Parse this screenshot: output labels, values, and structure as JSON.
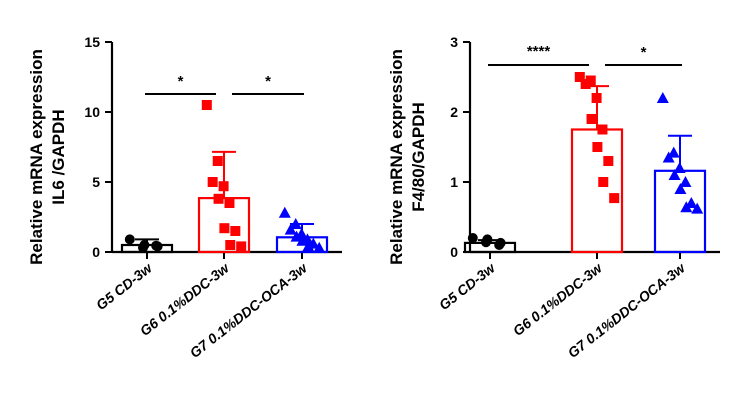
{
  "chart_data": [
    {
      "type": "bar",
      "ylabel_line1": "Relative mRNA expression",
      "ylabel_line2": "IL6 /GAPDH",
      "ylim": [
        0,
        15
      ],
      "yticks": [
        0,
        5,
        10,
        15
      ],
      "categories": [
        "G5 CD-3w",
        "G6 0.1%DDC-3w",
        "G7 0.1%DDC-OCA-3w"
      ],
      "colors": [
        "#000000",
        "#ff0000",
        "#0000ff"
      ],
      "markers": [
        "circle",
        "square",
        "triangle"
      ],
      "means": [
        0.5,
        3.85,
        1.05
      ],
      "sd": [
        0.4,
        3.3,
        0.95
      ],
      "points": [
        [
          0.9,
          0.5,
          0.3,
          0.4,
          0.45
        ],
        [
          10.5,
          6.5,
          5.0,
          4.7,
          3.8,
          3.5,
          1.7,
          1.5,
          0.5,
          0.4
        ],
        [
          2.8,
          2.0,
          1.6,
          1.3,
          1.1,
          0.9,
          0.8,
          0.6,
          0.4,
          0.3
        ]
      ],
      "significance": [
        {
          "from": 0,
          "to": 1,
          "label": "*"
        },
        {
          "from": 1,
          "to": 2,
          "label": "*"
        }
      ]
    },
    {
      "type": "bar",
      "ylabel_line1": "Relative mRNA expression",
      "ylabel_line2": "F4/80/GAPDH",
      "ylim": [
        0,
        3
      ],
      "yticks": [
        0,
        1,
        2,
        3
      ],
      "categories": [
        "G5 CD-3w",
        "G6 0.1%DDC-3w",
        "G7 0.1%DDC-OCA-3w"
      ],
      "colors": [
        "#000000",
        "#ff0000",
        "#0000ff"
      ],
      "markers": [
        "circle",
        "square",
        "triangle"
      ],
      "means": [
        0.13,
        1.75,
        1.16
      ],
      "sd": [
        0.04,
        0.62,
        0.5
      ],
      "points": [
        [
          0.2,
          0.18,
          0.14,
          0.13,
          0.1
        ],
        [
          2.5,
          2.45,
          2.4,
          2.2,
          1.9,
          1.75,
          1.5,
          1.3,
          1.0,
          0.77
        ],
        [
          2.2,
          1.42,
          1.35,
          1.2,
          1.1,
          1.0,
          0.9,
          0.7,
          0.64,
          0.62
        ]
      ],
      "significance": [
        {
          "from": 0,
          "to": 1,
          "label": "****"
        },
        {
          "from": 1,
          "to": 2,
          "label": "*"
        }
      ]
    }
  ]
}
